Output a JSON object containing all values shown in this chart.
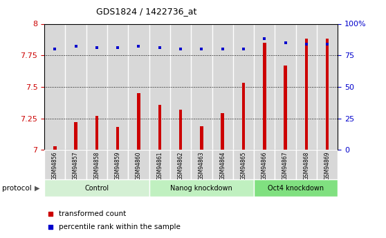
{
  "title": "GDS1824 / 1422736_at",
  "samples": [
    "GSM94856",
    "GSM94857",
    "GSM94858",
    "GSM94859",
    "GSM94860",
    "GSM94861",
    "GSM94862",
    "GSM94863",
    "GSM94864",
    "GSM94865",
    "GSM94866",
    "GSM94867",
    "GSM94868",
    "GSM94869"
  ],
  "red_values": [
    7.03,
    7.22,
    7.27,
    7.18,
    7.45,
    7.36,
    7.32,
    7.19,
    7.29,
    7.53,
    7.85,
    7.67,
    7.88,
    7.88
  ],
  "blue_values": [
    80,
    82,
    81,
    81,
    82,
    81,
    80,
    80,
    80,
    80,
    88,
    85,
    84,
    84
  ],
  "ylim_left": [
    7.0,
    8.0
  ],
  "ylim_right": [
    0,
    100
  ],
  "yticks_left": [
    7.0,
    7.25,
    7.5,
    7.75,
    8.0
  ],
  "ytick_labels_left": [
    "7",
    "7.25",
    "7.5",
    "7.75",
    "8"
  ],
  "yticks_right": [
    0,
    25,
    50,
    75,
    100
  ],
  "ytick_labels_right": [
    "0",
    "25",
    "50",
    "75",
    "100%"
  ],
  "groups": [
    {
      "label": "Control",
      "start": 0,
      "end": 4,
      "color": "#d4f0d4"
    },
    {
      "label": "Nanog knockdown",
      "start": 5,
      "end": 9,
      "color": "#c0f0c0"
    },
    {
      "label": "Oct4 knockdown",
      "start": 10,
      "end": 13,
      "color": "#80e080"
    }
  ],
  "protocol_label": "protocol",
  "red_color": "#cc0000",
  "blue_color": "#0000cc",
  "bar_bg_color": "#d8d8d8",
  "legend_red": "transformed count",
  "legend_blue": "percentile rank within the sample"
}
